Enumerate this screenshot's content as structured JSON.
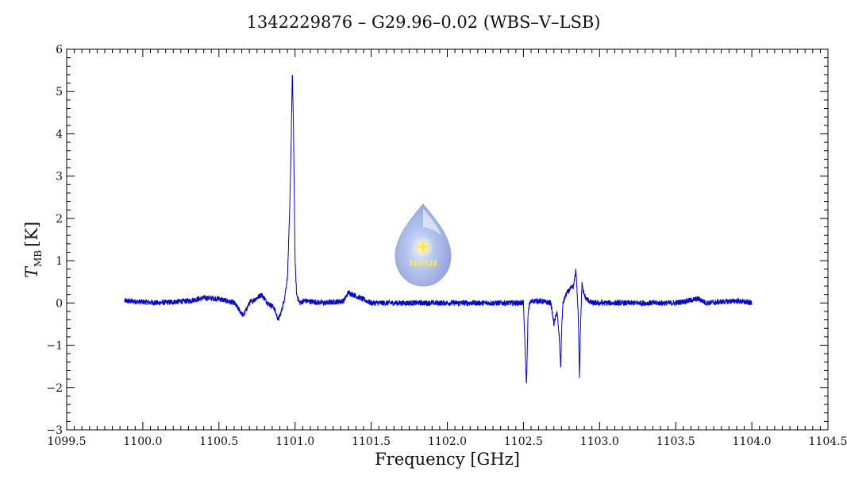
{
  "chart_data": {
    "type": "line",
    "title": "1342229876 – G29.96–0.02 (WBS–V–LSB)",
    "xlabel": "Frequency [GHz]",
    "ylabel": {
      "symbol": "T",
      "subscript": "MB",
      "unit": "[K]"
    },
    "xlim": [
      1099.5,
      1104.5
    ],
    "ylim": [
      -3,
      6
    ],
    "xticks": [
      1099.5,
      1100.0,
      1100.5,
      1101.0,
      1101.5,
      1102.0,
      1102.5,
      1103.0,
      1103.5,
      1104.0,
      1104.5
    ],
    "xtick_labels": [
      "1099.5",
      "1100.0",
      "1100.5",
      "1101.0",
      "1101.5",
      "1102.0",
      "1102.5",
      "1103.0",
      "1103.5",
      "1104.0",
      "1104.5"
    ],
    "yticks": [
      -3,
      -2,
      -1,
      0,
      1,
      2,
      3,
      4,
      5,
      6
    ],
    "ytick_labels": [
      "−3",
      "−2",
      "−1",
      "0",
      "1",
      "2",
      "3",
      "4",
      "5",
      "6"
    ],
    "grid": false,
    "legend": "none",
    "line_color": "#0000dd",
    "series": [
      {
        "x": [
          1099.88,
          1100.1,
          1100.3,
          1100.4,
          1100.5,
          1100.6,
          1100.66,
          1100.7,
          1100.75,
          1100.78,
          1100.82,
          1100.86,
          1100.89,
          1100.91,
          1100.93,
          1100.95,
          1100.965,
          1100.975,
          1100.982,
          1100.988,
          1100.995,
          1101.0,
          1101.01,
          1101.03,
          1101.06,
          1101.2,
          1101.32,
          1101.35,
          1101.5,
          1101.8,
          1102.0,
          1102.3,
          1102.5,
          1102.51,
          1102.52,
          1102.525,
          1102.53,
          1102.54,
          1102.56,
          1102.6,
          1102.68,
          1102.7,
          1102.72,
          1102.735,
          1102.745,
          1102.752,
          1102.76,
          1102.78,
          1102.8,
          1102.83,
          1102.845,
          1102.86,
          1102.868,
          1102.873,
          1102.878,
          1102.885,
          1102.89,
          1102.91,
          1102.95,
          1103.2,
          1103.5,
          1103.65,
          1103.7,
          1103.9,
          1104.0
        ],
        "y": [
          0.05,
          0.0,
          0.05,
          0.12,
          0.1,
          0.0,
          -0.3,
          0.0,
          0.12,
          0.2,
          0.0,
          -0.1,
          -0.4,
          -0.2,
          0.1,
          0.6,
          2.2,
          3.9,
          5.45,
          4.5,
          2.6,
          1.0,
          0.2,
          0.0,
          0.05,
          0.0,
          0.05,
          0.25,
          0.0,
          0.0,
          0.0,
          0.0,
          0.0,
          -1.0,
          -1.95,
          -1.2,
          -0.3,
          0.0,
          0.05,
          0.05,
          0.0,
          -0.5,
          -0.2,
          -0.8,
          -1.55,
          -0.5,
          0.0,
          0.2,
          0.3,
          0.4,
          0.8,
          -0.3,
          -1.75,
          -0.8,
          -0.2,
          0.5,
          0.3,
          0.1,
          0.0,
          0.0,
          0.0,
          0.1,
          0.0,
          0.05,
          0.0
        ]
      }
    ]
  },
  "logo": {
    "text": "WISH"
  }
}
